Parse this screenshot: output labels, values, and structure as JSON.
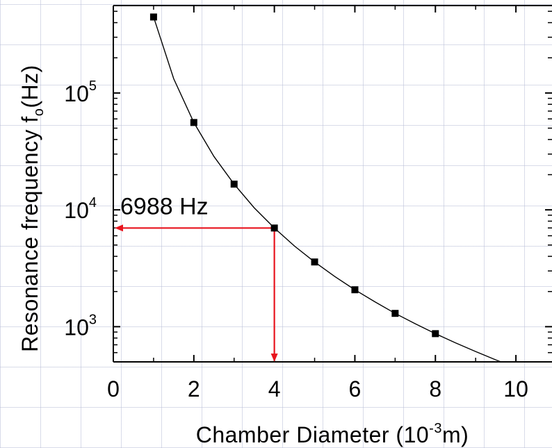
{
  "chart_data": {
    "type": "scatter",
    "xlabel": "Chamber Diameter (10⁻³m)",
    "xlabel_parts": {
      "pre": "Chamber Diameter (10",
      "sup": "-3",
      "post": "m)"
    },
    "ylabel": "Resonance frequency fₒ(Hz)",
    "ylabel_parts": {
      "pre": "Resonance frequency f",
      "sub": "o",
      "post": "(Hz)"
    },
    "xlim": [
      0,
      11
    ],
    "ylim": [
      500,
      560000
    ],
    "yscale": "log",
    "x_ticks": [
      0,
      2,
      4,
      6,
      8,
      10
    ],
    "x_tick_labels": [
      "0",
      "2",
      "4",
      "6",
      "8",
      "10"
    ],
    "y_ticks": [
      {
        "base": "10",
        "exp": "3",
        "value": 1000
      },
      {
        "base": "10",
        "exp": "4",
        "value": 10000
      },
      {
        "base": "10",
        "exp": "5",
        "value": 100000
      }
    ],
    "grid": false,
    "series": [
      {
        "marker": "square",
        "color": "#000000",
        "x": [
          1,
          2,
          3,
          4,
          5,
          6,
          7,
          8
        ],
        "y": [
          447000,
          55900,
          16600,
          6988,
          3580,
          2070,
          1300,
          872
        ]
      }
    ],
    "fit_curve": {
      "color": "#000000",
      "x": [
        1,
        1.5,
        2,
        2.5,
        3,
        3.5,
        4,
        4.5,
        5,
        5.5,
        6,
        6.5,
        7,
        7.5,
        8,
        8.5,
        9,
        9.5,
        10
      ],
      "y": [
        447000,
        132400,
        55900,
        28600,
        16600,
        10400,
        6988,
        4900,
        3580,
        2690,
        2070,
        1630,
        1300,
        1060,
        872,
        727,
        613,
        520,
        447
      ]
    },
    "annotation": {
      "text": "6988 Hz",
      "point_x": 4,
      "point_y": 6988,
      "color": "#e8141e"
    }
  }
}
